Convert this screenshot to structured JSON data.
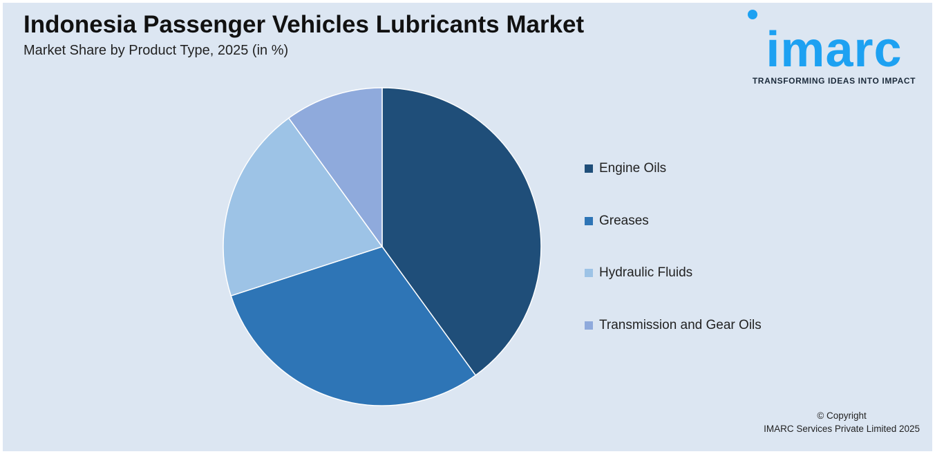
{
  "header": {
    "title": "Indonesia Passenger Vehicles Lubricants Market",
    "subtitle": "Market Share by Product Type, 2025 (in %)"
  },
  "logo": {
    "wordmark": "imarc",
    "tagline": "TRANSFORMING IDEAS INTO IMPACT",
    "color": "#1da1f2"
  },
  "chart_data": {
    "type": "pie",
    "title": "Indonesia Passenger Vehicles Lubricants Market",
    "subtitle": "Market Share by Product Type, 2025 (in %)",
    "categories": [
      "Engine Oils",
      "Greases",
      "Hydraulic Fluids",
      "Transmission and Gear Oils"
    ],
    "values": [
      40,
      30,
      20,
      10
    ],
    "colors": [
      "#1f4e79",
      "#2e75b6",
      "#9dc3e6",
      "#8faadc"
    ],
    "legend_position": "right",
    "data_labels": false
  },
  "footer": {
    "copyright_line1": "© Copyright",
    "copyright_line2": "IMARC Services Private Limited 2025"
  }
}
